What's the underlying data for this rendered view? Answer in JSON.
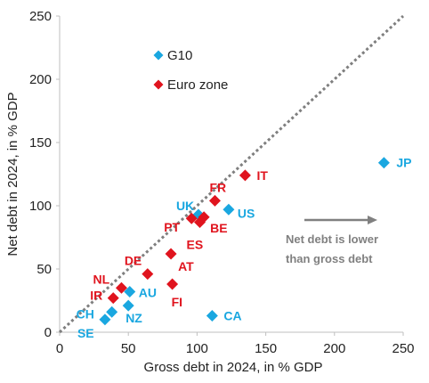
{
  "chart_data": {
    "type": "scatter",
    "xlabel": "Gross debt in 2024, in % GDP",
    "ylabel": "Net debt in 2024, in % GDP",
    "xlim": [
      0,
      250
    ],
    "ylim": [
      0,
      250
    ],
    "xticks": [
      0,
      50,
      100,
      150,
      200,
      250
    ],
    "yticks": [
      0,
      50,
      100,
      150,
      200,
      250
    ],
    "grid": false,
    "reference_line": {
      "type": "45-degree",
      "style": "dotted",
      "color": "#7f7f7f"
    },
    "legend_position": "top-left",
    "series": [
      {
        "name": "G10",
        "color": "#1aa7e0",
        "marker": "diamond",
        "points": [
          {
            "label": "JP",
            "x": 236,
            "y": 134
          },
          {
            "label": "US",
            "x": 123,
            "y": 97
          },
          {
            "label": "UK",
            "x": 101,
            "y": 93
          },
          {
            "label": "CA",
            "x": 111,
            "y": 13
          },
          {
            "label": "AU",
            "x": 51,
            "y": 32
          },
          {
            "label": "NZ",
            "x": 50,
            "y": 21
          },
          {
            "label": "CH",
            "x": 38,
            "y": 16
          },
          {
            "label": "SE",
            "x": 33,
            "y": 10
          }
        ]
      },
      {
        "name": "Euro zone",
        "color": "#e0141e",
        "marker": "diamond",
        "points": [
          {
            "label": "IT",
            "x": 135,
            "y": 124
          },
          {
            "label": "FR",
            "x": 113,
            "y": 104
          },
          {
            "label": "BE",
            "x": 105,
            "y": 91
          },
          {
            "label": "ES",
            "x": 102,
            "y": 87
          },
          {
            "label": "PT",
            "x": 96,
            "y": 90
          },
          {
            "label": "DE",
            "x": 64,
            "y": 46
          },
          {
            "label": "AT",
            "x": 81,
            "y": 62
          },
          {
            "label": "FI",
            "x": 82,
            "y": 38
          },
          {
            "label": "NL",
            "x": 45,
            "y": 35
          },
          {
            "label": "IR",
            "x": 39,
            "y": 27
          }
        ]
      }
    ],
    "annotation": {
      "lines": [
        "Net debt is lower",
        "than gross debt"
      ],
      "arrow": "right",
      "color": "#808080"
    }
  }
}
